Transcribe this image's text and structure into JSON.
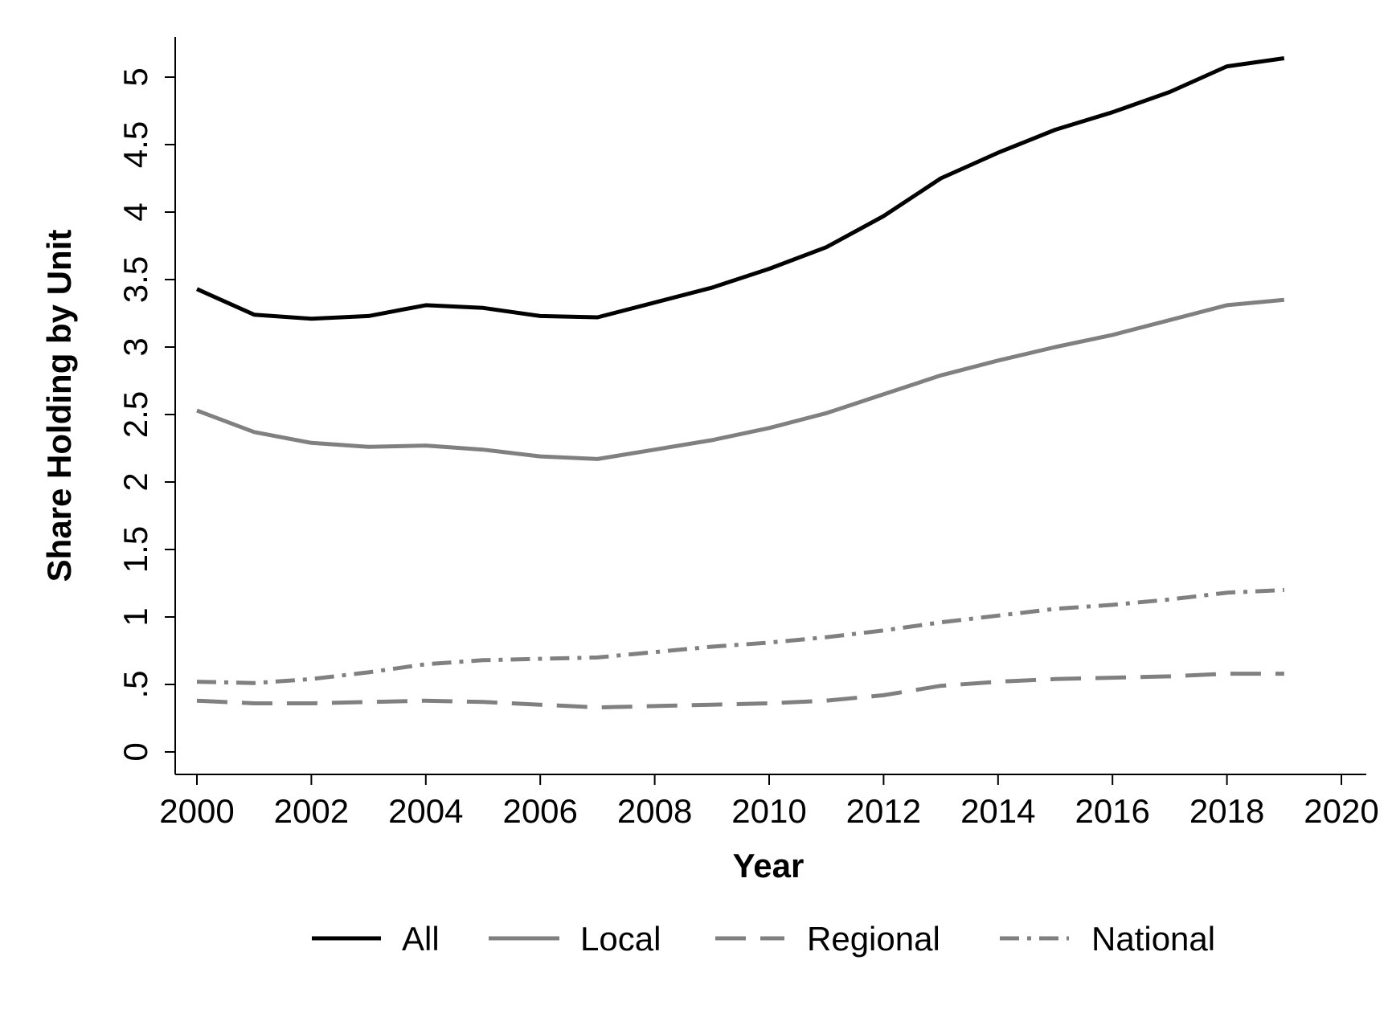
{
  "chart_data": {
    "type": "line",
    "title": "",
    "xlabel": "Year",
    "ylabel": "Share Holding by Unit",
    "xlim": [
      2000,
      2020
    ],
    "ylim": [
      0,
      5
    ],
    "xticks": [
      "2000",
      "2002",
      "2004",
      "2006",
      "2008",
      "2010",
      "2012",
      "2014",
      "2016",
      "2018",
      "2020"
    ],
    "yticks": [
      "0",
      ".5",
      "1",
      "1.5",
      "2",
      "2.5",
      "3",
      "3.5",
      "4",
      "4.5",
      "5"
    ],
    "grid": false,
    "legend_position": "bottom",
    "x": [
      2000,
      2001,
      2002,
      2003,
      2004,
      2005,
      2006,
      2007,
      2008,
      2009,
      2010,
      2011,
      2012,
      2013,
      2014,
      2015,
      2016,
      2017,
      2018,
      2019
    ],
    "series": [
      {
        "name": "All",
        "color": "#000000",
        "dash": "solid",
        "values": [
          3.43,
          3.24,
          3.21,
          3.23,
          3.31,
          3.29,
          3.23,
          3.22,
          3.33,
          3.44,
          3.58,
          3.74,
          3.97,
          4.25,
          4.44,
          4.61,
          4.74,
          4.89,
          5.08,
          5.14
        ]
      },
      {
        "name": "Local",
        "color": "#808080",
        "dash": "solid",
        "values": [
          2.53,
          2.37,
          2.29,
          2.26,
          2.27,
          2.24,
          2.19,
          2.17,
          2.24,
          2.31,
          2.4,
          2.51,
          2.65,
          2.79,
          2.9,
          3.0,
          3.09,
          3.2,
          3.31,
          3.35
        ]
      },
      {
        "name": "Regional",
        "color": "#808080",
        "dash": "long-dash",
        "values": [
          0.38,
          0.36,
          0.36,
          0.37,
          0.38,
          0.37,
          0.35,
          0.33,
          0.34,
          0.35,
          0.36,
          0.38,
          0.42,
          0.49,
          0.52,
          0.54,
          0.55,
          0.56,
          0.58,
          0.58
        ]
      },
      {
        "name": "National",
        "color": "#808080",
        "dash": "dash-dot",
        "values": [
          0.52,
          0.51,
          0.54,
          0.59,
          0.65,
          0.68,
          0.69,
          0.7,
          0.74,
          0.78,
          0.81,
          0.85,
          0.9,
          0.96,
          1.01,
          1.06,
          1.09,
          1.13,
          1.18,
          1.2
        ]
      }
    ]
  }
}
